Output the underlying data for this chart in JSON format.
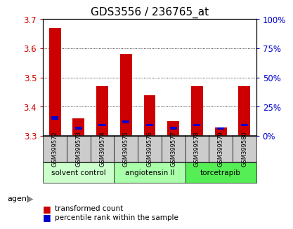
{
  "title": "GDS3556 / 236765_at",
  "samples": [
    "GSM399572",
    "GSM399573",
    "GSM399574",
    "GSM399575",
    "GSM399576",
    "GSM399577",
    "GSM399578",
    "GSM399579",
    "GSM399580"
  ],
  "red_values": [
    3.67,
    3.36,
    3.47,
    3.58,
    3.44,
    3.35,
    3.47,
    3.33,
    3.47
  ],
  "blue_heights": [
    0.013,
    0.008,
    0.008,
    0.01,
    0.008,
    0.008,
    0.008,
    0.007,
    0.008
  ],
  "blue_bottoms": [
    3.355,
    3.323,
    3.333,
    3.343,
    3.333,
    3.323,
    3.333,
    3.322,
    3.333
  ],
  "ymin": 3.3,
  "ymax": 3.7,
  "yticks_left": [
    3.3,
    3.4,
    3.5,
    3.6,
    3.7
  ],
  "yticks_right_vals": [
    0,
    25,
    50,
    75,
    100
  ],
  "bar_color_red": "#cc0000",
  "bar_color_blue": "#0000cc",
  "bar_width": 0.5,
  "groups": [
    {
      "label": "solvent control",
      "start": 0,
      "end": 2,
      "color": "#ccffcc"
    },
    {
      "label": "angiotensin II",
      "start": 3,
      "end": 5,
      "color": "#aaffaa"
    },
    {
      "label": "torcetrapib",
      "start": 6,
      "end": 8,
      "color": "#55ee55"
    }
  ],
  "agent_label": "agent",
  "legend_red": "transformed count",
  "legend_blue": "percentile rank within the sample",
  "tick_color_left": "#cc0000",
  "tick_color_right": "#0000cc",
  "grid_color": "#000000",
  "sample_area_color": "#cccccc",
  "title_fontsize": 11,
  "tick_fontsize": 8.5,
  "legend_fontsize": 7.5
}
